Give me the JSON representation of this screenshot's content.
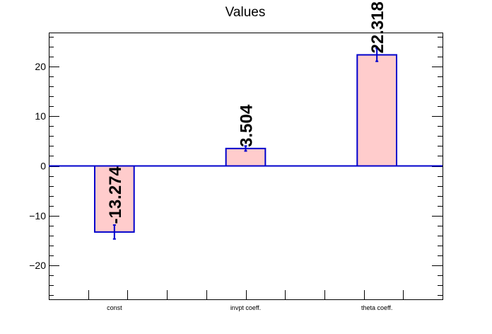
{
  "chart_data": {
    "type": "bar",
    "title": "Values",
    "categories": [
      "const",
      "invpt coeff.",
      "theta coeff."
    ],
    "values": [
      -13.274,
      3.504,
      22.318
    ],
    "value_labels": [
      "-13.274",
      "3.504",
      "22.318"
    ],
    "errors": [
      1.4,
      0.5,
      1.3
    ],
    "ylim": [
      -26.8,
      26.8
    ],
    "yticks": [
      -20,
      -10,
      0,
      10,
      20
    ],
    "ytick_labels": [
      "−20",
      "−10",
      "0",
      "10",
      "20"
    ],
    "bar_fill": "#ffcccc",
    "bar_edge": "#0000cc",
    "zero_line_color": "#0000cc",
    "xlabel": "",
    "ylabel": "",
    "grid": false
  }
}
